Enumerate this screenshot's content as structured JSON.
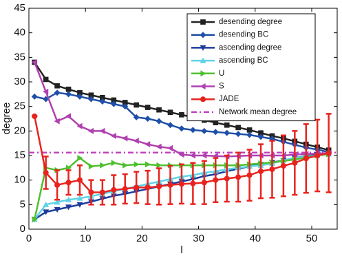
{
  "chart_data": {
    "type": "line",
    "xlabel": "l",
    "ylabel": "degree",
    "x": [
      1,
      3,
      5,
      7,
      9,
      11,
      13,
      15,
      17,
      19,
      21,
      23,
      25,
      27,
      29,
      31,
      33,
      35,
      37,
      39,
      41,
      43,
      45,
      47,
      49,
      51,
      53
    ],
    "xlim": [
      0,
      54.5
    ],
    "xticks": [
      0,
      10,
      20,
      30,
      40,
      50
    ],
    "ylim": [
      0,
      45
    ],
    "yticks": [
      0,
      5,
      10,
      15,
      20,
      25,
      30,
      35,
      40,
      45
    ],
    "series": [
      {
        "name": "desending degree",
        "color": "#222222",
        "marker": "square",
        "values": [
          34,
          30.5,
          29.2,
          28.5,
          27.8,
          27.3,
          26.8,
          26.3,
          25.8,
          25.3,
          24.8,
          24.3,
          23.8,
          23.3,
          22.8,
          22.2,
          21.7,
          21.2,
          20.7,
          20.2,
          19.6,
          19,
          18.5,
          17.9,
          17.3,
          16.7,
          16.1
        ]
      },
      {
        "name": "desending BC",
        "color": "#1f4fa8",
        "marker": "diamond",
        "values": [
          27,
          26.5,
          27.8,
          27.5,
          27,
          26.5,
          26,
          25.5,
          25,
          22.8,
          22.5,
          22,
          21.2,
          20.5,
          20.2,
          20,
          19.8,
          19.6,
          19.4,
          19.2,
          18.8,
          18.4,
          17.8,
          17.2,
          16.6,
          16.2,
          15.7
        ]
      },
      {
        "name": "ascending degree",
        "color": "#1f3c9c",
        "marker": "down",
        "values": [
          2,
          3.5,
          4,
          4.5,
          5,
          5.6,
          6.2,
          6.8,
          7.2,
          7.7,
          8.2,
          8.7,
          9.2,
          9.7,
          10.2,
          10.8,
          11.2,
          11.8,
          12.3,
          12.8,
          13.2,
          13.6,
          14,
          14.5,
          14.9,
          15.2,
          15.5
        ]
      },
      {
        "name": "ascending BC",
        "color": "#5fd3e6",
        "marker": "up",
        "values": [
          2,
          5,
          5.5,
          6,
          6.3,
          6.7,
          7.2,
          7.7,
          8.2,
          8.7,
          9.2,
          9.7,
          10.2,
          10.7,
          11,
          11.5,
          11.8,
          12.2,
          12.5,
          12.8,
          13,
          13.4,
          14,
          14.5,
          14.8,
          15,
          15.3
        ]
      },
      {
        "name": "U",
        "color": "#4fbf2f",
        "marker": "right",
        "values": [
          2,
          12.5,
          12,
          12.5,
          14.5,
          12.8,
          13,
          13.5,
          13,
          13.2,
          13.2,
          13,
          13,
          13,
          13,
          13,
          13,
          13,
          13,
          13.2,
          13.4,
          13.6,
          13.9,
          14.2,
          14.6,
          15,
          15.3
        ]
      },
      {
        "name": "S",
        "color": "#b040b0",
        "marker": "left",
        "values": [
          34,
          28,
          22,
          23,
          21,
          20,
          20,
          19,
          18.5,
          18,
          17.3,
          16.8,
          16.5,
          15.2,
          15,
          15,
          14.9,
          14.8,
          14.9,
          15,
          15,
          15,
          15,
          15.2,
          15.3,
          15.4,
          15.5
        ]
      },
      {
        "name": "JADE",
        "color": "#e8231e",
        "marker": "circle",
        "values": [
          23,
          11.5,
          9,
          9.5,
          10,
          7.5,
          7.5,
          8,
          8.2,
          8.5,
          8.5,
          8.7,
          9,
          9.2,
          9.3,
          9.5,
          10,
          10.3,
          10.6,
          11,
          11.8,
          12.2,
          12.9,
          13.5,
          14.4,
          15,
          15.5
        ],
        "errors": [
          0,
          3.3,
          3,
          2.5,
          3,
          2.5,
          2.5,
          3,
          3,
          3.2,
          3.4,
          3.7,
          3.9,
          4,
          4.2,
          4.4,
          4.5,
          4.7,
          5,
          5.2,
          5.5,
          5.8,
          6.2,
          6.5,
          7,
          7.3,
          8
        ]
      }
    ],
    "reference_line": {
      "name": "Network mean degree",
      "value": 15.6,
      "color": "#c040c0"
    }
  }
}
